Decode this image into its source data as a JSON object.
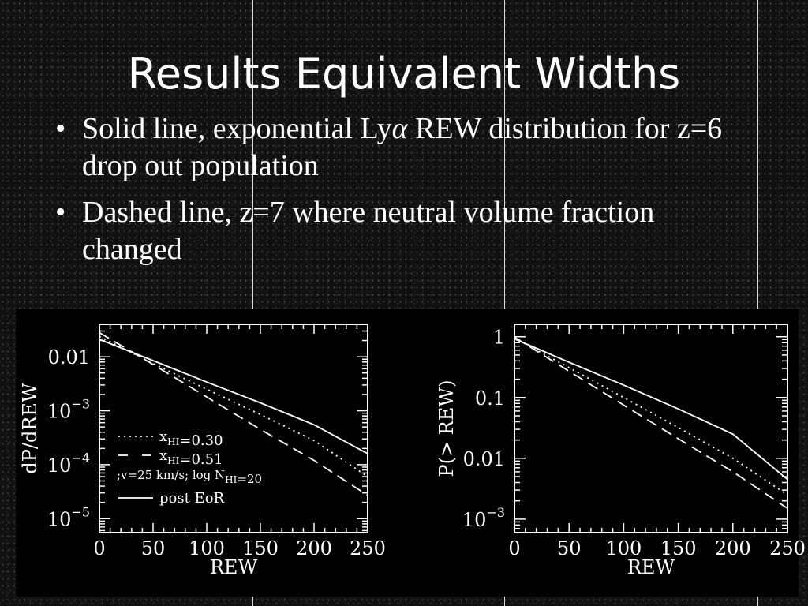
{
  "slide": {
    "title": "Results Equivalent Widths",
    "bullets": [
      {
        "before": "Solid line, exponential Ly",
        "greek": "α",
        "after": " REW distribution for z=6 drop out population"
      },
      {
        "before": "Dashed line, z=7 where neutral volume fraction changed",
        "greek": "",
        "after": ""
      }
    ]
  },
  "colors": {
    "background": "#111111",
    "plot_bg": "#000000",
    "ink": "#ffffff"
  },
  "chart_data": [
    {
      "type": "line",
      "xlabel": "REW",
      "ylabel": "dP/dREW",
      "log_y": true,
      "xlim": [
        0,
        250
      ],
      "ylim": [
        5.5e-06,
        0.04
      ],
      "x_ticks": [
        "0",
        "50",
        "100",
        "150",
        "200",
        "250"
      ],
      "y_ticks": [
        {
          "value": 0.01,
          "base": "0.01",
          "sup": ""
        },
        {
          "value": 0.001,
          "base": "10",
          "sup": "−3"
        },
        {
          "value": 0.0001,
          "base": "10",
          "sup": "−4"
        },
        {
          "value": 1e-05,
          "base": "10",
          "sup": "−5"
        }
      ],
      "legend": [
        {
          "style": "dotted",
          "parts": [
            {
              "t": "x"
            },
            {
              "t": "HI",
              "sub": true
            },
            {
              "t": "=0.30"
            }
          ]
        },
        {
          "style": "dashed",
          "parts": [
            {
              "t": "x"
            },
            {
              "t": "HI",
              "sub": true
            },
            {
              "t": "=0.51"
            }
          ]
        },
        {
          "style": "none",
          "parts": [
            {
              "t": ";v=25 km/s; log N"
            },
            {
              "t": "HI",
              "sub": true
            },
            {
              "t": "=20"
            }
          ]
        },
        {
          "style": "solid",
          "parts": [
            {
              "t": "post EoR"
            }
          ]
        }
      ],
      "series": [
        {
          "style": "solid",
          "x": [
            0,
            50,
            100,
            150,
            200,
            250
          ],
          "y": [
            0.021,
            0.0085,
            0.0034,
            0.0014,
            0.00055,
            0.00016
          ]
        },
        {
          "style": "dotted",
          "x": [
            0,
            50,
            100,
            150,
            200,
            250
          ],
          "y": [
            0.024,
            0.0075,
            0.0025,
            0.00085,
            0.00028,
            6e-05
          ]
        },
        {
          "style": "dashed",
          "x": [
            0,
            50,
            100,
            150,
            200,
            250
          ],
          "y": [
            0.028,
            0.0072,
            0.0018,
            0.00045,
            0.00012,
            2.7e-05
          ]
        }
      ]
    },
    {
      "type": "line",
      "xlabel": "REW",
      "ylabel": "P(> REW)",
      "log_y": true,
      "xlim": [
        0,
        250
      ],
      "ylim": [
        0.0006,
        1.6
      ],
      "x_ticks": [
        "0",
        "50",
        "100",
        "150",
        "200",
        "250"
      ],
      "y_ticks": [
        {
          "value": 1,
          "base": "1",
          "sup": ""
        },
        {
          "value": 0.1,
          "base": "0.1",
          "sup": ""
        },
        {
          "value": 0.01,
          "base": "0.01",
          "sup": ""
        },
        {
          "value": 0.001,
          "base": "10",
          "sup": "−3"
        }
      ],
      "series": [
        {
          "style": "solid",
          "x": [
            0,
            50,
            100,
            150,
            200,
            250
          ],
          "y": [
            0.92,
            0.38,
            0.16,
            0.065,
            0.025,
            0.0045
          ]
        },
        {
          "style": "dotted",
          "x": [
            0,
            50,
            100,
            150,
            200,
            250
          ],
          "y": [
            0.95,
            0.31,
            0.1,
            0.032,
            0.01,
            0.0025
          ]
        },
        {
          "style": "dashed",
          "x": [
            0,
            50,
            100,
            150,
            200,
            250
          ],
          "y": [
            0.98,
            0.27,
            0.075,
            0.021,
            0.006,
            0.0015
          ]
        }
      ]
    }
  ]
}
